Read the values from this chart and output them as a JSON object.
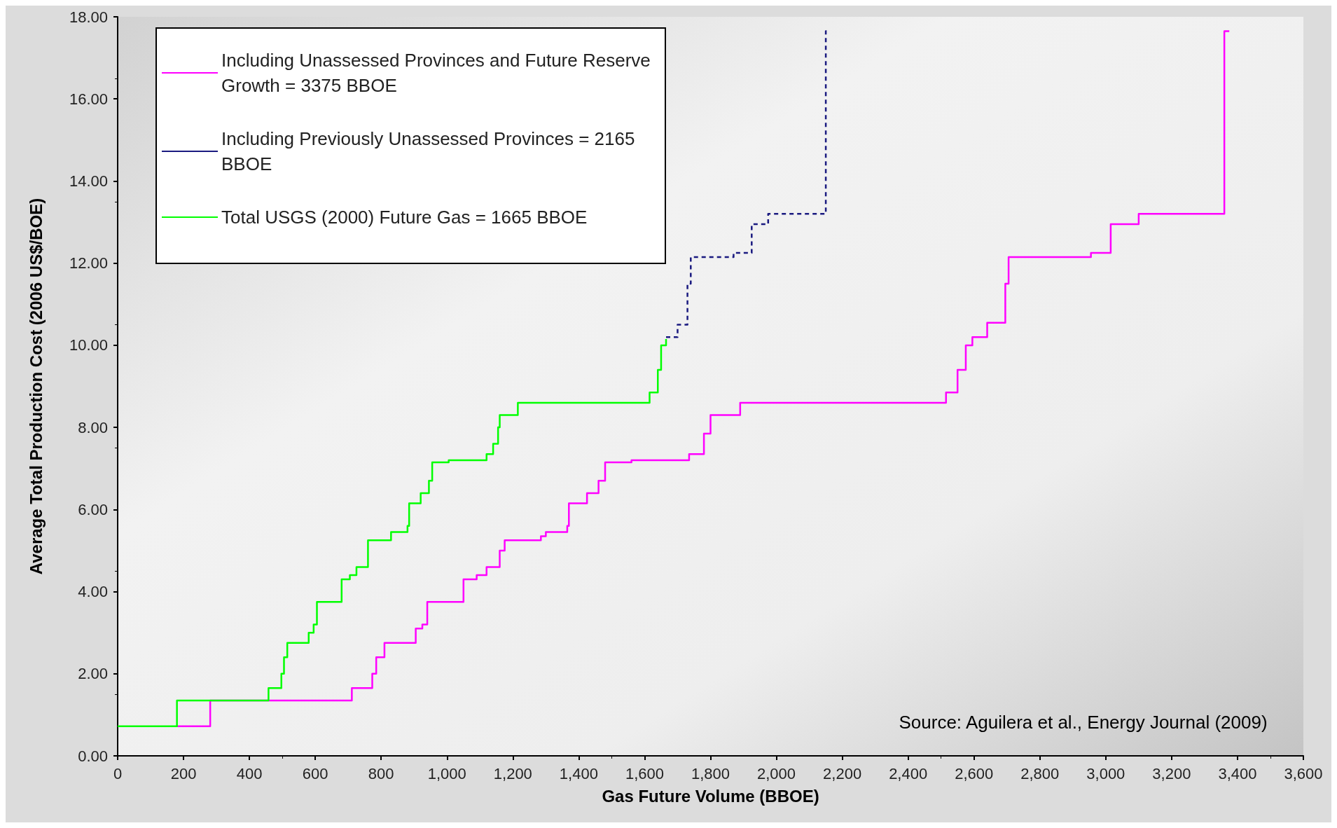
{
  "chart_data": {
    "type": "step",
    "xlabel": "Gas Future Volume (BBOE)",
    "ylabel": "Average Total Production Cost (2006 US$/BOE)",
    "xlim": [
      0,
      3600
    ],
    "ylim": [
      0,
      18
    ],
    "xticks": [
      0,
      200,
      400,
      600,
      800,
      {
        "value": 1000,
        "label": "1,000"
      },
      {
        "value": 1200,
        "label": "1,200"
      },
      {
        "value": 1400,
        "label": "1,400"
      },
      {
        "value": 1600,
        "label": "1,600"
      },
      {
        "value": 1800,
        "label": "1,800"
      },
      {
        "value": 2000,
        "label": "2,000"
      },
      {
        "value": 2200,
        "label": "2,200"
      },
      {
        "value": 2400,
        "label": "2,400"
      },
      {
        "value": 2600,
        "label": "2,600"
      },
      {
        "value": 2800,
        "label": "2,800"
      },
      {
        "value": 3000,
        "label": "3,000"
      },
      {
        "value": 3200,
        "label": "3,200"
      },
      {
        "value": 3400,
        "label": "3,400"
      },
      {
        "value": 3600,
        "label": "3,600"
      }
    ],
    "yticks": [
      {
        "value": 0,
        "label": "0.00"
      },
      {
        "value": 2,
        "label": "2.00"
      },
      {
        "value": 4,
        "label": "4.00"
      },
      {
        "value": 6,
        "label": "6.00"
      },
      {
        "value": 8,
        "label": "8.00"
      },
      {
        "value": 10,
        "label": "10.00"
      },
      {
        "value": 12,
        "label": "12.00"
      },
      {
        "value": 14,
        "label": "14.00"
      },
      {
        "value": 16,
        "label": "16.00"
      },
      {
        "value": 18,
        "label": "18.00"
      }
    ],
    "grid": false,
    "legend": "top left",
    "marker": "none",
    "annotations": [
      "Source: Aguilera et al., Energy Journal (2009)"
    ],
    "series": [
      {
        "name": "Including Unassessed Provinces and Future Reserve Growth = 3375 BBOE",
        "color": "#ff00ff",
        "line_style": "solid",
        "x": [
          180,
          281,
          711,
          773,
          785,
          810,
          905,
          925,
          940,
          1050,
          1090,
          1120,
          1160,
          1175,
          1285,
          1300,
          1365,
          1370,
          1425,
          1460,
          1480,
          1560,
          1735,
          1780,
          1800,
          1890,
          2515,
          2550,
          2575,
          2595,
          2640,
          2695,
          2705,
          2955,
          3015,
          3100,
          3360,
          3375
        ],
        "values": [
          0.72,
          1.35,
          1.65,
          2.0,
          2.4,
          2.75,
          3.1,
          3.2,
          3.75,
          4.3,
          4.4,
          4.6,
          5.0,
          5.25,
          5.35,
          5.45,
          5.6,
          6.15,
          6.4,
          6.7,
          7.15,
          7.2,
          7.35,
          7.85,
          8.3,
          8.6,
          8.85,
          9.4,
          10.0,
          10.2,
          10.55,
          11.5,
          12.15,
          12.25,
          12.95,
          13.2,
          17.65,
          17.65
        ]
      },
      {
        "name": "Including Previously Unassessed Provinces = 2165 BBOE",
        "color": "#1a1a80",
        "line_style": "dashed",
        "x": [
          1665,
          1700,
          1730,
          1740,
          1870,
          1925,
          1975,
          2150,
          2160
        ],
        "values": [
          10.2,
          10.5,
          11.5,
          12.15,
          12.25,
          12.95,
          13.2,
          17.65,
          17.65
        ]
      },
      {
        "name": "Total USGS (2000) Future Gas = 1665 BBOE",
        "color": "#00ff00",
        "line_style": "solid",
        "x": [
          0,
          180,
          458,
          497,
          505,
          515,
          580,
          595,
          605,
          680,
          705,
          725,
          760,
          830,
          880,
          885,
          920,
          945,
          955,
          1005,
          1120,
          1140,
          1155,
          1160,
          1215,
          1615,
          1640,
          1650,
          1665
        ],
        "values": [
          0.72,
          1.35,
          1.65,
          2.0,
          2.4,
          2.75,
          3.0,
          3.2,
          3.75,
          4.3,
          4.4,
          4.6,
          5.25,
          5.45,
          5.6,
          6.15,
          6.4,
          6.7,
          7.15,
          7.2,
          7.35,
          7.6,
          8.0,
          8.3,
          8.6,
          8.85,
          9.4,
          10.0,
          10.15
        ]
      }
    ]
  }
}
